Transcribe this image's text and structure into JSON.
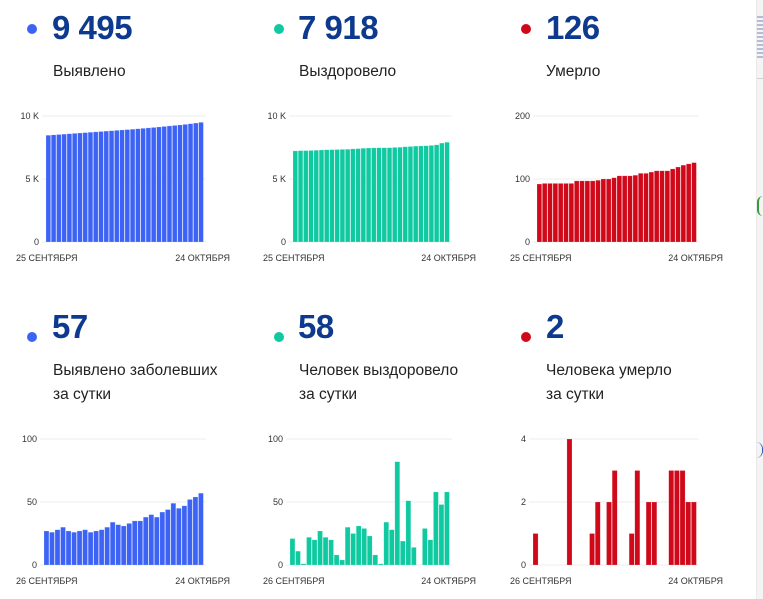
{
  "colors": {
    "confirmed": "#3d63f5",
    "recovered": "#0fc9a0",
    "deaths": "#d0091a",
    "number": "#0d3a8e",
    "grid": "#eeeeee"
  },
  "cards": [
    {
      "id": "confirmed-total",
      "value": "9 495",
      "caption_lines": [
        "Выявлено"
      ],
      "color_key": "confirmed"
    },
    {
      "id": "recovered-total",
      "value": "7 918",
      "caption_lines": [
        "Выздоровело"
      ],
      "color_key": "recovered"
    },
    {
      "id": "deaths-total",
      "value": "126",
      "caption_lines": [
        "Умерло"
      ],
      "color_key": "deaths"
    },
    {
      "id": "confirmed-daily",
      "value": "57",
      "caption_lines": [
        "Выявлено заболевших",
        "за сутки"
      ],
      "color_key": "confirmed"
    },
    {
      "id": "recovered-daily",
      "value": "58",
      "caption_lines": [
        "Человек выздоровело",
        "за сутки"
      ],
      "color_key": "recovered"
    },
    {
      "id": "deaths-daily",
      "value": "2",
      "caption_lines": [
        "Человека умерло",
        "за сутки"
      ],
      "color_key": "deaths"
    }
  ],
  "chart_data": [
    {
      "type": "bar",
      "title": "Выявлено",
      "color_key": "confirmed",
      "x_start_label": "25 СЕНТЯБРЯ",
      "x_end_label": "24 ОКТЯБРЯ",
      "yticks": [
        0,
        5000,
        10000
      ],
      "ytick_labels": [
        "0",
        "5 K",
        "10 K"
      ],
      "ylim": [
        0,
        10000
      ],
      "grid": true,
      "values": [
        8470,
        8500,
        8530,
        8560,
        8590,
        8620,
        8650,
        8680,
        8710,
        8740,
        8770,
        8800,
        8830,
        8860,
        8890,
        8920,
        8950,
        8985,
        9020,
        9055,
        9090,
        9130,
        9170,
        9210,
        9250,
        9290,
        9335,
        9385,
        9440,
        9495
      ]
    },
    {
      "type": "bar",
      "title": "Выздоровело",
      "color_key": "recovered",
      "x_start_label": "25 СЕНТЯБРЯ",
      "x_end_label": "24 ОКТЯБРЯ",
      "yticks": [
        0,
        5000,
        10000
      ],
      "ytick_labels": [
        "0",
        "5 K",
        "10 K"
      ],
      "ylim": [
        0,
        10000
      ],
      "grid": true,
      "values": [
        7230,
        7250,
        7255,
        7265,
        7280,
        7300,
        7320,
        7330,
        7340,
        7350,
        7360,
        7390,
        7410,
        7440,
        7460,
        7470,
        7480,
        7480,
        7485,
        7505,
        7520,
        7560,
        7580,
        7610,
        7625,
        7640,
        7665,
        7710,
        7850,
        7918
      ]
    },
    {
      "type": "bar",
      "title": "Умерло",
      "color_key": "deaths",
      "x_start_label": "25 СЕНТЯБРЯ",
      "x_end_label": "24 ОКТЯБРЯ",
      "yticks": [
        0,
        100,
        200
      ],
      "ytick_labels": [
        "0",
        "100",
        "200"
      ],
      "ylim": [
        0,
        200
      ],
      "grid": true,
      "values": [
        92,
        93,
        93,
        93,
        93,
        93,
        93,
        97,
        97,
        97,
        97,
        98,
        100,
        100,
        102,
        105,
        105,
        105,
        106,
        109,
        109,
        111,
        113,
        113,
        113,
        116,
        119,
        122,
        124,
        126
      ]
    },
    {
      "type": "bar",
      "title": "Выявлено заболевших за сутки",
      "color_key": "confirmed",
      "x_start_label": "26 СЕНТЯБРЯ",
      "x_end_label": "24 ОКТЯБРЯ",
      "yticks": [
        0,
        50,
        100
      ],
      "ytick_labels": [
        "0",
        "50",
        "100"
      ],
      "ylim": [
        0,
        100
      ],
      "grid": true,
      "values": [
        27,
        26,
        28,
        30,
        27,
        26,
        27,
        28,
        26,
        27,
        28,
        30,
        34,
        32,
        31,
        33,
        35,
        35,
        38,
        40,
        38,
        42,
        44,
        49,
        45,
        47,
        52,
        54,
        57
      ]
    },
    {
      "type": "bar",
      "title": "Человек выздоровело за сутки",
      "color_key": "recovered",
      "x_start_label": "26 СЕНТЯБРЯ",
      "x_end_label": "24 ОКТЯБРЯ",
      "yticks": [
        0,
        50,
        100
      ],
      "ytick_labels": [
        "0",
        "50",
        "100"
      ],
      "ylim": [
        0,
        100
      ],
      "grid": true,
      "values": [
        21,
        11,
        1,
        22,
        20,
        27,
        22,
        20,
        8,
        4,
        30,
        25,
        31,
        29,
        23,
        8,
        1,
        34,
        28,
        82,
        19,
        51,
        14,
        0,
        29,
        20,
        58,
        48,
        58
      ]
    },
    {
      "type": "bar",
      "title": "Человека умерло за сутки",
      "color_key": "deaths",
      "x_start_label": "26 СЕНТЯБРЯ",
      "x_end_label": "24 ОКТЯБРЯ",
      "yticks": [
        0,
        2,
        4
      ],
      "ytick_labels": [
        "0",
        "2",
        "4"
      ],
      "ylim": [
        0,
        4
      ],
      "grid": true,
      "values": [
        1,
        0,
        0,
        0,
        0,
        0,
        4,
        0,
        0,
        0,
        1,
        2,
        0,
        2,
        3,
        0,
        0,
        1,
        3,
        0,
        2,
        2,
        0,
        0,
        3,
        3,
        3,
        2,
        2
      ]
    }
  ]
}
